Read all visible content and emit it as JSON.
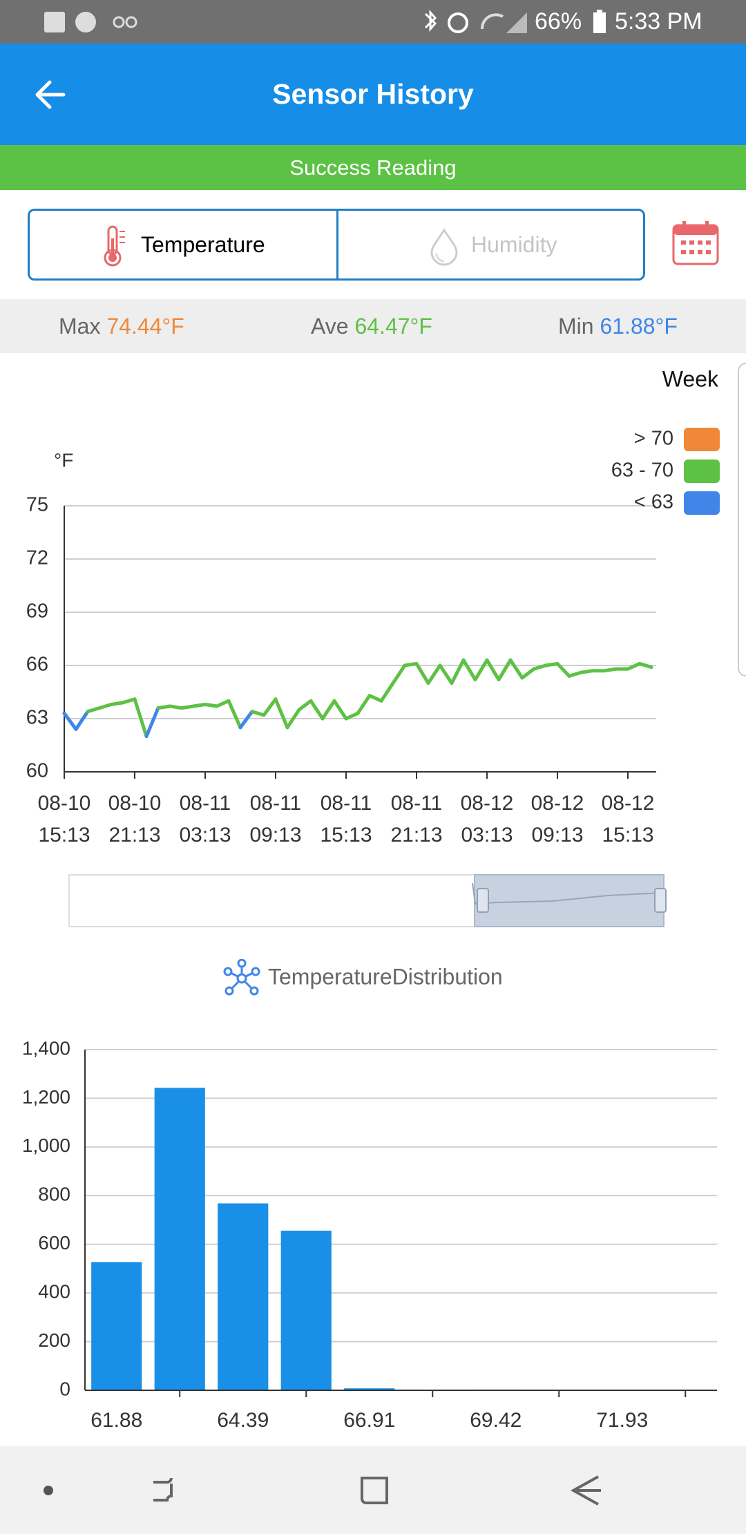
{
  "status_bar": {
    "battery": "66%",
    "time": "5:33 PM"
  },
  "app_bar": {
    "title": "Sensor History"
  },
  "banner": "Success Reading",
  "tabs": [
    {
      "label": "Temperature",
      "active": true
    },
    {
      "label": "Humidity",
      "active": false
    }
  ],
  "stats": [
    {
      "label": "Max",
      "value": "74.44°F",
      "color": "#f0883a"
    },
    {
      "label": "Ave",
      "value": "64.47°F",
      "color": "#5dc144"
    },
    {
      "label": "Min",
      "value": "61.88°F",
      "color": "#3f86e8"
    }
  ],
  "chart_data": [
    {
      "type": "line",
      "period": "Week",
      "y_label": "°F",
      "categories": [
        "08-10\n15:13",
        null,
        null,
        null,
        null,
        null,
        "08-10\n21:13",
        null,
        null,
        null,
        null,
        null,
        "08-11\n03:13",
        null,
        null,
        null,
        null,
        null,
        "08-11\n09:13",
        null,
        null,
        null,
        null,
        null,
        "08-11\n15:13",
        null,
        null,
        null,
        null,
        null,
        "08-11\n21:13",
        null,
        null,
        null,
        null,
        null,
        "08-12\n03:13",
        null,
        null,
        null,
        null,
        null,
        "08-12\n09:13",
        null,
        null,
        null,
        null,
        null,
        "08-12\n15:13",
        null,
        null
      ],
      "values": [
        63.3,
        62.4,
        63.4,
        63.6,
        63.8,
        63.9,
        64.1,
        62.0,
        63.6,
        63.7,
        63.6,
        63.7,
        63.8,
        63.7,
        64.0,
        62.5,
        63.4,
        63.2,
        64.1,
        62.5,
        63.5,
        64.0,
        63.0,
        64.0,
        63.0,
        63.3,
        64.3,
        64.0,
        65.0,
        66.0,
        66.1,
        65.0,
        66.0,
        65.0,
        66.3,
        65.2,
        66.3,
        65.2,
        66.3,
        65.3,
        65.8,
        66.0,
        66.1,
        65.4,
        65.6,
        65.7,
        65.7,
        65.8,
        65.8,
        66.1,
        65.9
      ],
      "ylim": [
        60,
        75
      ],
      "yticks": [
        60,
        63,
        66,
        69,
        72,
        75
      ],
      "grid": true,
      "visual_map": [
        {
          "label": "> 70",
          "gt": 70,
          "color": "#f0883a"
        },
        {
          "label": "63 - 70",
          "gte": 63,
          "lte": 70,
          "color": "#5dc144"
        },
        {
          "label": "< 63",
          "lt": 63,
          "color": "#3f86e8"
        }
      ]
    },
    {
      "type": "bar",
      "title": "TemperatureDistribution",
      "categories": [
        "61.88",
        null,
        "64.39",
        null,
        "66.91",
        null,
        "69.42",
        null,
        "71.93",
        null
      ],
      "values": [
        527,
        1243,
        768,
        656,
        8,
        0,
        3,
        2,
        2,
        2
      ],
      "color": "#1a8fe8",
      "ylim": [
        0,
        1400
      ],
      "yticks": [
        0,
        200,
        400,
        600,
        800,
        {
          "value": 1000,
          "label": "1,000"
        },
        {
          "value": 1200,
          "label": "1,200"
        },
        {
          "value": 1400,
          "label": "1,400"
        }
      ],
      "grid": true
    }
  ]
}
